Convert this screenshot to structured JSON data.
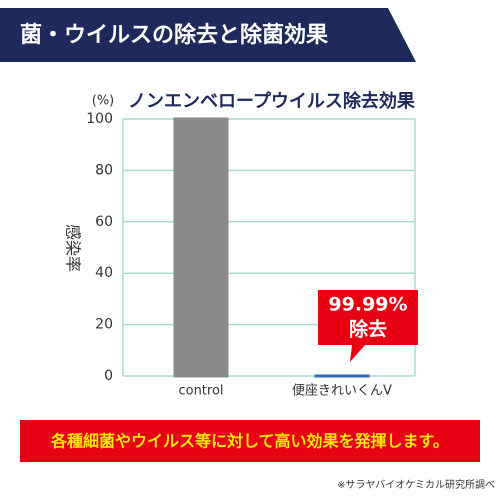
{
  "header": {
    "title": "菌・ウイルスの除去と除菌効果"
  },
  "chart_data": {
    "type": "bar",
    "title": "ノンエンベロープウイルス除去効果",
    "y_unit": "(%)",
    "y_label": "感染率",
    "categories": [
      "control",
      "便座きれいくんV"
    ],
    "series": [
      {
        "name": "感染率",
        "colors": [
          "#8a8a8a",
          "#2a6bb5"
        ],
        "values": [
          100,
          0.01
        ]
      }
    ],
    "ylim": [
      0,
      100
    ],
    "yticks": [
      0,
      20,
      40,
      60,
      80,
      100
    ],
    "grid": true,
    "grid_color": "#a8dcd3",
    "annotation": [
      "99.99%",
      "除去"
    ]
  },
  "footer": {
    "banner": "各種細菌やウイルス等に対して高い効果を発揮します。",
    "note": "※サラヤバイオケミカル研究所調べ"
  }
}
